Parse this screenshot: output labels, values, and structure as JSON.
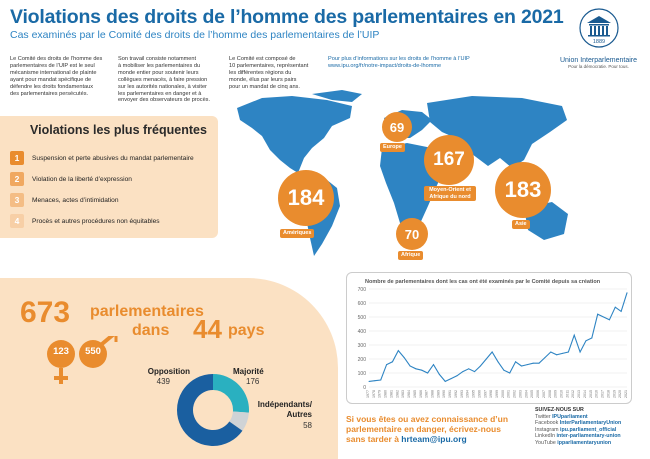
{
  "header": {
    "title": "Violations des droits de l’homme des parlementaires en 2021",
    "subtitle": "Cas examinés par le Comité des droits de l’homme des parlementaires de l’UIP"
  },
  "intro": {
    "col1": [
      "Le Comité des droits de l’homme des",
      "parlementaires de l’UIP est le seul",
      "mécanisme international de plainte",
      "ayant pour mandat spécifique de",
      "défendre les droits fondamentaux",
      "des parlementaires persécutés."
    ],
    "col2": [
      "Son travail consiste notamment",
      "à mobiliser les parlementaires du",
      "monde entier pour soutenir leurs",
      "collègues menacés, à faire pression",
      "sur les autorités nationales, à visiter",
      "les parlementaires en danger et à",
      "envoyer des observateurs de procès."
    ],
    "col3": [
      "Le Comité est composé de",
      "10 parlementaires, représentant",
      "les différentes régions du",
      "monde, élus par leurs pairs",
      "pour un mandat de cinq ans."
    ],
    "col4_text": "Pour plus d’informations sur les droits de l’homme à l’UIP",
    "col4_link": "www.ipu.org/fr/notre-impact/droits-de-lhomme"
  },
  "logo": {
    "year": "1889",
    "name": "Union Interparlementaire",
    "tagline": "Pour la démocratie. Pour tous."
  },
  "regions": [
    {
      "name": "Amériques",
      "value": "184"
    },
    {
      "name": "Europe",
      "value": "69"
    },
    {
      "name": "Moyen-Orient et Afrique du nord",
      "value": "167"
    },
    {
      "name": "Afrique",
      "value": "70"
    },
    {
      "name": "Asie",
      "value": "183"
    }
  ],
  "violations": {
    "title": "Violations les plus fréquentes",
    "items": [
      {
        "n": "1",
        "label": "Suspension et perte abusives du mandat parlementaire",
        "color": "#e98c2e"
      },
      {
        "n": "2",
        "label": "Violation de la liberté d’expression",
        "color": "#f0a860"
      },
      {
        "n": "3",
        "label": "Menaces, actes d’intimidation",
        "color": "#f4bd85"
      },
      {
        "n": "4",
        "label": "Procès et autres procédures non équitables",
        "color": "#f7cfa6"
      }
    ]
  },
  "stats": {
    "total": "673",
    "total_label": "parlementaires",
    "countries_prefix": "dans",
    "countries": "44",
    "countries_label": "pays",
    "women": "123",
    "men": "550",
    "affiliation": [
      {
        "label": "Opposition",
        "value": 439,
        "color": "#1a5fa0"
      },
      {
        "label": "Majorité",
        "value": 176,
        "color": "#2ab0c0"
      },
      {
        "label": "Indépendants/ Autres",
        "value": 58,
        "color": "#cfd3d6"
      }
    ]
  },
  "chart_data": {
    "type": "line",
    "title": "Nombre de parlementaires dont les cas ont été examinés par le Comité depuis sa création",
    "x": [
      1977,
      1978,
      1979,
      1980,
      1981,
      1982,
      1983,
      1984,
      1985,
      1986,
      1987,
      1988,
      1989,
      1990,
      1991,
      1992,
      1993,
      1994,
      1995,
      1996,
      1997,
      1998,
      1999,
      2000,
      2001,
      2002,
      2003,
      2004,
      2005,
      2006,
      2007,
      2008,
      2009,
      2010,
      2011,
      2012,
      2013,
      2014,
      2015,
      2016,
      2017,
      2018,
      2019,
      2020,
      2021
    ],
    "y": [
      40,
      45,
      50,
      160,
      180,
      260,
      210,
      150,
      130,
      120,
      100,
      160,
      90,
      40,
      60,
      80,
      110,
      130,
      110,
      150,
      200,
      250,
      180,
      120,
      100,
      180,
      150,
      160,
      170,
      170,
      210,
      250,
      230,
      240,
      250,
      370,
      250,
      330,
      350,
      520,
      500,
      480,
      570,
      540,
      673
    ],
    "ylim": [
      0,
      700
    ],
    "yticks": [
      0,
      100,
      200,
      300,
      400,
      500,
      600,
      700
    ]
  },
  "cta": {
    "text": "Si vous êtes ou avez connaissance d’un parlementaire en danger, écrivez-nous sans tarder à ",
    "email": "hrteam@ipu.org"
  },
  "social": {
    "title": "SUIVEZ-NOUS SUR",
    "items": [
      {
        "label": "Twitter ",
        "handle": "IPUparliament"
      },
      {
        "label": "Facebook ",
        "handle": "InterParliamentaryUnion"
      },
      {
        "label": "Instagram ",
        "handle": "ipu.parliament_official"
      },
      {
        "label": "LinkedIn ",
        "handle": "inter-parliamentary-union"
      },
      {
        "label": "YouTube ",
        "handle": "ipparliamentaryunion"
      }
    ]
  },
  "colors": {
    "orange": "#e98c2e",
    "blue": "#1a6aa6",
    "peach": "#fbe1c3"
  }
}
